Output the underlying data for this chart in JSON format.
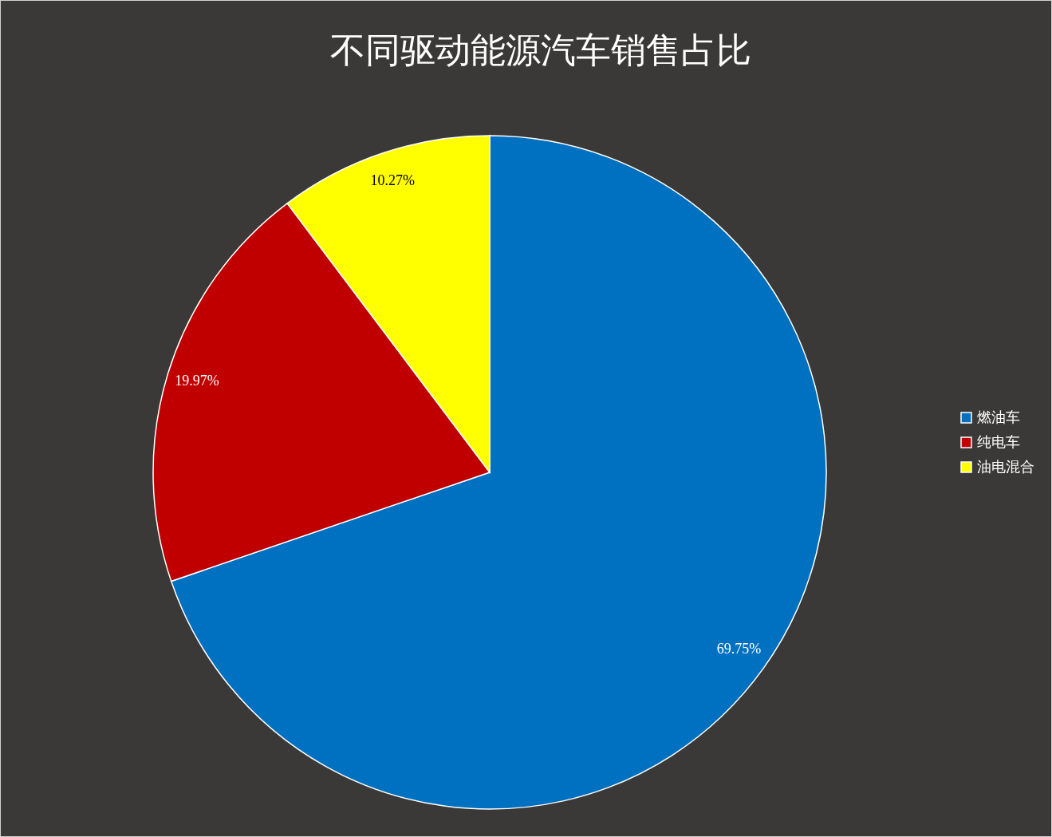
{
  "chart_data": {
    "type": "pie",
    "title": "不同驱动能源汽车销售占比",
    "categories": [
      "燃油车",
      "纯电车",
      "油电混合"
    ],
    "values": [
      69.75,
      19.97,
      10.27
    ],
    "colors": [
      "#0070c0",
      "#c00000",
      "#ffff00"
    ],
    "value_labels": [
      "69.75%",
      "19.97%",
      "10.27%"
    ],
    "legend": "right"
  }
}
